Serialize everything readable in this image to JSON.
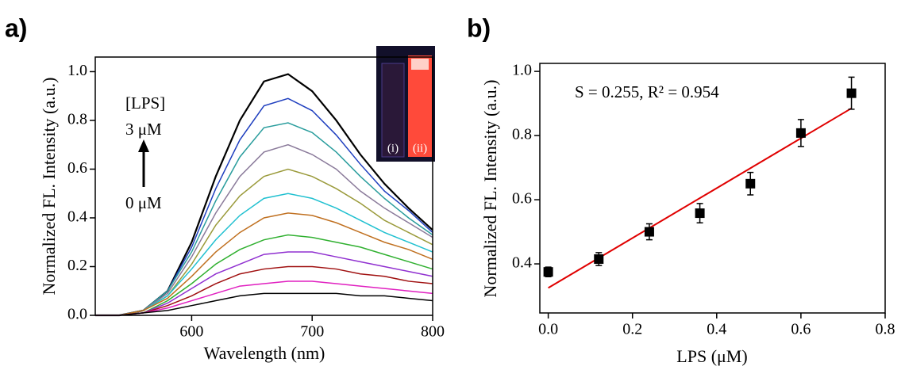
{
  "chart_data": [
    {
      "type": "line",
      "panel_label": "a)",
      "ylabel": "Normalized FL. Intensity (a.u.)",
      "xlabel": "Wavelength (nm)",
      "annotation_title": "[LPS]",
      "annotation_high": "3 μM",
      "annotation_low": "0 μM",
      "inset_labels": [
        "(i)",
        "(ii)"
      ],
      "xlim": [
        520,
        800
      ],
      "xticks": [
        600,
        700,
        800
      ],
      "ylim": [
        0,
        1.06
      ],
      "yticks": [
        {
          "value": 0,
          "label": "0.0"
        },
        0.2,
        0.4,
        0.6,
        0.8,
        {
          "value": 1,
          "label": "1.0"
        }
      ],
      "x": [
        520,
        540,
        560,
        580,
        600,
        620,
        640,
        660,
        680,
        700,
        720,
        740,
        760,
        780,
        800
      ],
      "series": [
        {
          "color": "#000000",
          "values": [
            0,
            0,
            0.02,
            0.1,
            0.3,
            0.57,
            0.8,
            0.96,
            0.99,
            0.92,
            0.8,
            0.66,
            0.54,
            0.44,
            0.35
          ]
        },
        {
          "color": "#1f3fbf",
          "values": [
            0,
            0,
            0.02,
            0.1,
            0.28,
            0.52,
            0.72,
            0.86,
            0.89,
            0.84,
            0.74,
            0.62,
            0.51,
            0.43,
            0.34
          ]
        },
        {
          "color": "#2a9d9d",
          "values": [
            0,
            0,
            0.02,
            0.1,
            0.26,
            0.47,
            0.65,
            0.77,
            0.79,
            0.75,
            0.67,
            0.57,
            0.48,
            0.4,
            0.33
          ]
        },
        {
          "color": "#8a7a9a",
          "values": [
            0,
            0,
            0.02,
            0.09,
            0.24,
            0.42,
            0.57,
            0.67,
            0.7,
            0.66,
            0.6,
            0.51,
            0.44,
            0.38,
            0.32
          ]
        },
        {
          "color": "#9a9a3a",
          "values": [
            0,
            0,
            0.02,
            0.08,
            0.21,
            0.37,
            0.49,
            0.57,
            0.6,
            0.57,
            0.52,
            0.46,
            0.39,
            0.34,
            0.29
          ]
        },
        {
          "color": "#20c0d0",
          "values": [
            0,
            0,
            0.02,
            0.08,
            0.19,
            0.31,
            0.41,
            0.48,
            0.5,
            0.48,
            0.44,
            0.39,
            0.34,
            0.3,
            0.26
          ]
        },
        {
          "color": "#c07020",
          "values": [
            0,
            0,
            0.02,
            0.07,
            0.16,
            0.26,
            0.34,
            0.4,
            0.42,
            0.41,
            0.38,
            0.34,
            0.3,
            0.27,
            0.23
          ]
        },
        {
          "color": "#30b030",
          "values": [
            0,
            0,
            0.01,
            0.06,
            0.13,
            0.21,
            0.27,
            0.31,
            0.33,
            0.32,
            0.3,
            0.28,
            0.25,
            0.22,
            0.19
          ]
        },
        {
          "color": "#9030d0",
          "values": [
            0,
            0,
            0.01,
            0.05,
            0.11,
            0.17,
            0.21,
            0.25,
            0.26,
            0.26,
            0.24,
            0.22,
            0.2,
            0.18,
            0.16
          ]
        },
        {
          "color": "#a01010",
          "values": [
            0,
            0,
            0.01,
            0.04,
            0.08,
            0.13,
            0.17,
            0.19,
            0.2,
            0.2,
            0.19,
            0.17,
            0.16,
            0.14,
            0.13
          ]
        },
        {
          "color": "#e020c0",
          "values": [
            0,
            0,
            0.01,
            0.03,
            0.06,
            0.09,
            0.12,
            0.13,
            0.14,
            0.14,
            0.13,
            0.12,
            0.11,
            0.1,
            0.09
          ]
        },
        {
          "color": "#000000",
          "values": [
            0,
            0,
            0.01,
            0.02,
            0.04,
            0.06,
            0.08,
            0.09,
            0.09,
            0.09,
            0.09,
            0.08,
            0.08,
            0.07,
            0.06
          ]
        }
      ]
    },
    {
      "type": "scatter",
      "panel_label": "b)",
      "ylabel": "Normalized FL. Intensity (a.u.)",
      "xlabel": "LPS (μM)",
      "annotation": "S = 0.255, R² = 0.954",
      "xlim": [
        -0.02,
        0.8
      ],
      "xticks": [
        {
          "value": 0,
          "label": "0.0"
        },
        0.2,
        0.4,
        0.6,
        0.8
      ],
      "ylim": [
        0.247,
        1.025
      ],
      "yticks": [
        0.4,
        0.6,
        0.8,
        {
          "value": 1,
          "label": "1.0"
        }
      ],
      "color": "#000000",
      "x": [
        0,
        0.12,
        0.24,
        0.36,
        0.48,
        0.6,
        0.72
      ],
      "y": [
        0.375,
        0.415,
        0.5,
        0.558,
        0.65,
        0.808,
        0.932
      ],
      "error": [
        0.015,
        0.02,
        0.025,
        0.03,
        0.035,
        0.042,
        0.05
      ],
      "fit": {
        "x": [
          0,
          0.72
        ],
        "y": [
          0.325,
          0.885
        ],
        "color": "#e00000"
      }
    }
  ]
}
